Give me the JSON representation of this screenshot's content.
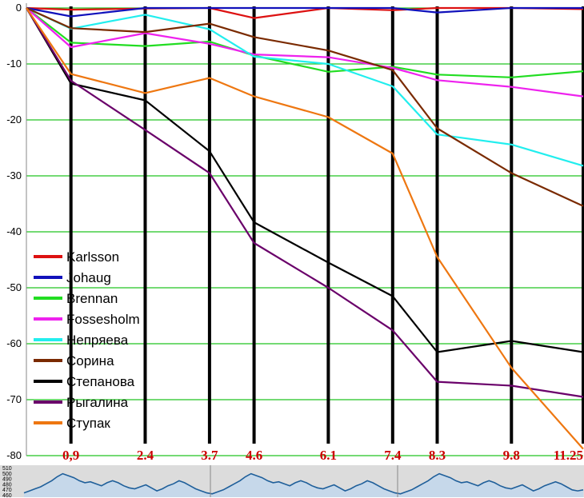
{
  "chart_data": {
    "type": "line",
    "ylim": [
      -80,
      0
    ],
    "yticks": [
      0,
      -10,
      -20,
      -30,
      -40,
      -50,
      -60,
      -70,
      -80
    ],
    "ytick_labels": [
      "0",
      "-10",
      "-20",
      "-30",
      "-40",
      "-50",
      "-60",
      "-70",
      "-80"
    ],
    "checkpoints": [
      "0,9",
      "2.4",
      "3.7",
      "4.6",
      "6.1",
      "7.4",
      "8.3",
      "9.8",
      "11.25"
    ],
    "checkpoint_km": [
      0.9,
      2.4,
      3.7,
      4.6,
      6.1,
      7.4,
      8.3,
      9.8,
      11.25
    ],
    "x": [
      0,
      0.9,
      2.4,
      3.7,
      4.6,
      6.1,
      7.4,
      8.3,
      9.8,
      11.25
    ],
    "grid": true,
    "legend_position": "bottom-left",
    "series": [
      {
        "name": "Karlsson",
        "color": "#dd1111",
        "values": [
          0,
          -0.3,
          -0.1,
          0,
          -1.8,
          0,
          -0.4,
          0,
          0,
          -0.2
        ]
      },
      {
        "name": "Johaug",
        "color": "#1111bb",
        "values": [
          0,
          -1.5,
          0,
          0,
          0,
          0,
          0,
          -0.8,
          0,
          0
        ]
      },
      {
        "name": "Brennan",
        "color": "#22dd22",
        "values": [
          0,
          -6.2,
          -6.8,
          -6.0,
          -8.5,
          -11.4,
          -10.5,
          -11.9,
          -12.4,
          -11.3
        ]
      },
      {
        "name": "Fossesholm",
        "color": "#ee22ee",
        "values": [
          0,
          -7.0,
          -4.5,
          -6.4,
          -8.3,
          -8.8,
          -10.7,
          -12.9,
          -14.1,
          -15.8
        ]
      },
      {
        "name": "Непряева",
        "color": "#22eeee",
        "values": [
          0,
          -3.7,
          -1.2,
          -3.8,
          -8.7,
          -10.0,
          -14.0,
          -22.6,
          -24.4,
          -28.2
        ]
      },
      {
        "name": "Сорина",
        "color": "#7a2a00",
        "values": [
          0,
          -3.6,
          -4.3,
          -2.8,
          -5.2,
          -7.6,
          -11.1,
          -21.5,
          -29.5,
          -35.4
        ]
      },
      {
        "name": "Степанова",
        "color": "#000000",
        "values": [
          0,
          -13.5,
          -16.5,
          -25.6,
          -38.3,
          -45.5,
          -51.5,
          -61.5,
          -59.5,
          -61.5
        ]
      },
      {
        "name": "Рыгалина",
        "color": "#6a006a",
        "values": [
          0,
          -13.0,
          -21.8,
          -29.5,
          -42.0,
          -50.0,
          -57.6,
          -66.8,
          -67.5,
          -69.5
        ]
      },
      {
        "name": "Ступак",
        "color": "#ee7711",
        "values": [
          0,
          -11.8,
          -15.2,
          -12.5,
          -15.8,
          -19.5,
          -26.0,
          -44.5,
          -64.3,
          -78.8
        ]
      }
    ],
    "profile": {
      "yticks": [
        "510",
        "500",
        "490",
        "480",
        "470",
        "460"
      ],
      "values": [
        462,
        466,
        470,
        474,
        480,
        486,
        494,
        500,
        496,
        492,
        486,
        482,
        484,
        480,
        476,
        482,
        486,
        482,
        476,
        472,
        470,
        474,
        478,
        472,
        466,
        470,
        476,
        480,
        486,
        482,
        476,
        470,
        466,
        462,
        460,
        464,
        468,
        474,
        480,
        486,
        494,
        500,
        496,
        492,
        486,
        482,
        484,
        480,
        476,
        482,
        486,
        482,
        476,
        472,
        470,
        474,
        478,
        472,
        466,
        470,
        476,
        480,
        486,
        482,
        476,
        470,
        466,
        462,
        460,
        464,
        468,
        474,
        480,
        486,
        494,
        500,
        496,
        492,
        486,
        482,
        484,
        480,
        476,
        482,
        486,
        482,
        476,
        472,
        470,
        474,
        478,
        472,
        466,
        470,
        476,
        480,
        484,
        480,
        474,
        468,
        466,
        468
      ]
    }
  }
}
